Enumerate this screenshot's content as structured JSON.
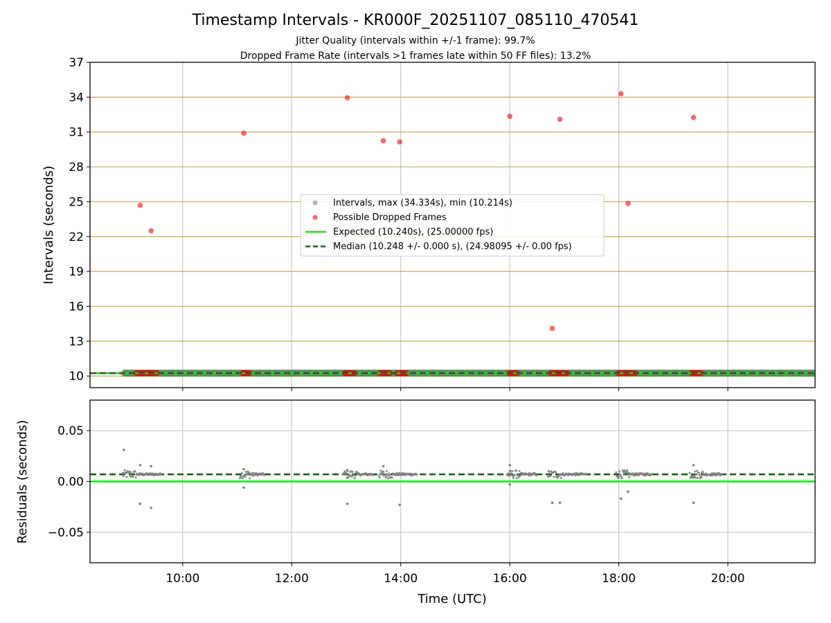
{
  "chart_data": [
    {
      "type": "scatter",
      "title": "Timestamp Intervals - KR000F_20251107_085110_470541",
      "subtitle_lines": [
        "Jitter Quality (intervals within +/-1 frame): 99.7%",
        "Dropped Frame Rate (intervals >1 frames late within 50 FF files): 13.2%"
      ],
      "ylabel": "Intervals (seconds)",
      "xlabel": "",
      "xlim_hours": [
        8.3,
        21.6
      ],
      "ylim": [
        9.0,
        37.0
      ],
      "yticks": [
        10,
        13,
        16,
        19,
        22,
        25,
        28,
        31,
        34,
        37
      ],
      "ytick_labels": [
        "10",
        "13",
        "16",
        "19",
        "22",
        "25",
        "28",
        "31",
        "34",
        "37"
      ],
      "xticks_hours": [
        10,
        12,
        14,
        16,
        18,
        20
      ],
      "legend_position": "center",
      "legend": [
        "Intervals, max (34.334s), min (10.214s)",
        "Possible Dropped Frames",
        "Expected (10.240s), (25.00000 fps)",
        "Median (10.248 +/- 0.000 s), (24.98095 +/- 0.00 fps)"
      ],
      "intervals_band": {
        "x_start_hours": 8.9,
        "x_end_hours": 21.6,
        "y": 10.248,
        "min": 10.214,
        "max": 34.334
      },
      "expected": 10.24,
      "median": 10.248,
      "dropped_frames": {
        "x_hours": [
          9.22,
          9.42,
          11.12,
          13.02,
          13.68,
          13.98,
          16.0,
          16.92,
          16.78,
          18.04,
          18.17,
          19.37
        ],
        "y": [
          24.7,
          22.5,
          30.9,
          33.95,
          30.25,
          30.15,
          32.35,
          32.1,
          14.1,
          34.3,
          24.85,
          32.25
        ]
      },
      "dropped_clusters_at_baseline": [
        [
          9.15,
          9.55
        ],
        [
          11.1,
          11.25
        ],
        [
          12.97,
          13.15
        ],
        [
          13.62,
          13.82
        ],
        [
          13.93,
          14.12
        ],
        [
          15.98,
          16.15
        ],
        [
          16.75,
          17.05
        ],
        [
          18.0,
          18.32
        ],
        [
          19.33,
          19.52
        ]
      ],
      "colors": {
        "interval": "#808080",
        "dropped": "#ff0000",
        "expected": "#00ee00",
        "median": "#006400",
        "hgrid": "#c8a951",
        "vgrid": "#c8c8c8"
      }
    },
    {
      "type": "scatter",
      "title": "",
      "ylabel": "Residuals (seconds)",
      "xlabel": "Time (UTC)",
      "xlim_hours": [
        8.3,
        21.6
      ],
      "ylim": [
        -0.08,
        0.08
      ],
      "yticks": [
        -0.05,
        0.0,
        0.05
      ],
      "ytick_labels": [
        "−0.05",
        "0.00",
        "0.05"
      ],
      "xticks_hours": [
        10,
        12,
        14,
        16,
        18,
        20
      ],
      "xtick_labels": [
        "10:00",
        "12:00",
        "14:00",
        "16:00",
        "18:00",
        "20:00"
      ],
      "median_residual": 0.007,
      "expected_residual": 0.0,
      "outliers": {
        "x_hours": [
          8.92,
          9.22,
          9.42,
          9.22,
          9.42,
          11.12,
          13.02,
          13.68,
          13.98,
          16.0,
          16.0,
          16.78,
          16.92,
          18.04,
          18.17,
          19.37,
          11.12,
          13.02,
          19.37
        ],
        "y": [
          0.031,
          -0.022,
          -0.026,
          0.016,
          0.015,
          -0.006,
          -0.022,
          0.015,
          -0.023,
          0.016,
          -0.003,
          -0.021,
          -0.021,
          -0.017,
          -0.01,
          -0.021,
          0.012,
          0.011,
          0.016
        ]
      },
      "clusters": [
        [
          8.9,
          9.6
        ],
        [
          11.05,
          11.5
        ],
        [
          12.95,
          13.5
        ],
        [
          13.6,
          14.3
        ],
        [
          15.95,
          16.5
        ],
        [
          16.7,
          17.4
        ],
        [
          17.95,
          18.6
        ],
        [
          19.3,
          19.9
        ]
      ],
      "colors": {
        "point": "#808080",
        "expected": "#00ee00",
        "median": "#006400",
        "grid": "#c8c8c8"
      }
    }
  ]
}
